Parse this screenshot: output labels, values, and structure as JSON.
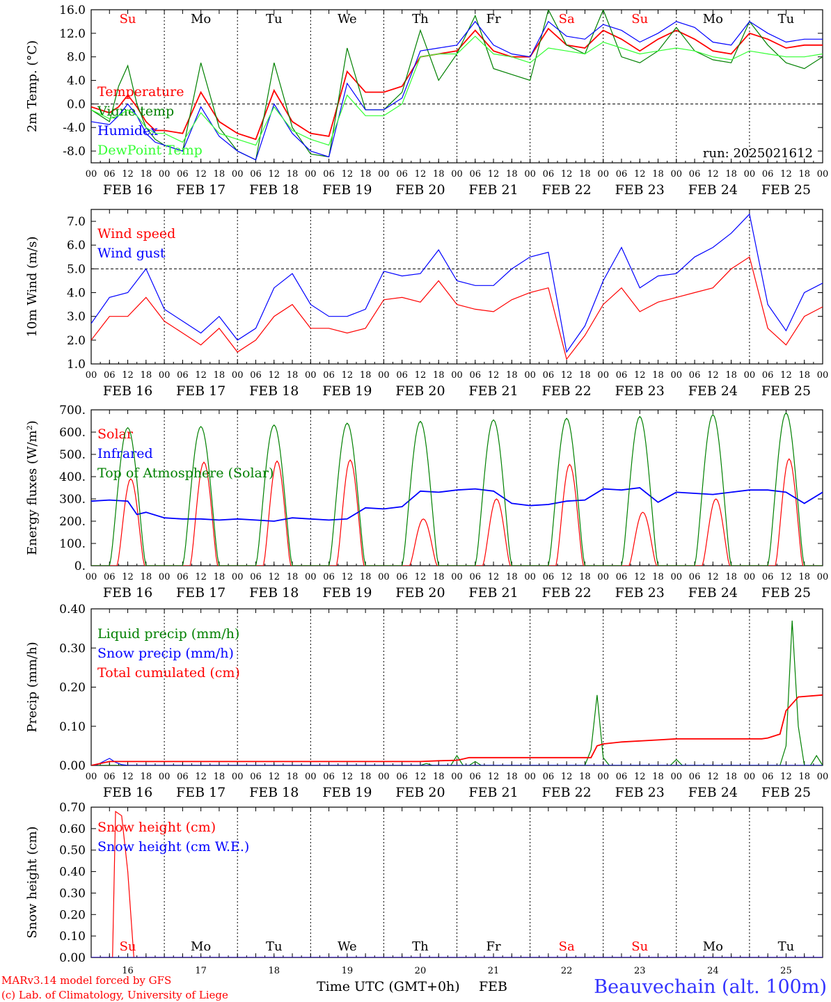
{
  "footer": {
    "model_line": "MARv3.14 model forced by GFS",
    "credit_line": "(c) Lab. of Climatology, University of Liege",
    "xlabel": "Time UTC (GMT+0h)",
    "month": "FEB",
    "station": "Beauvechain (alt. 100m)"
  },
  "time_axis": {
    "hour_ticks": [
      "00",
      "06",
      "12",
      "18"
    ],
    "dates": [
      "FEB 16",
      "FEB 17",
      "FEB 18",
      "FEB 19",
      "FEB 20",
      "FEB 21",
      "FEB 22",
      "FEB 23",
      "FEB 24",
      "FEB 25"
    ],
    "weekdays": [
      "Su",
      "Mo",
      "Tu",
      "We",
      "Th",
      "Fr",
      "Sa",
      "Su",
      "Mo",
      "Tu"
    ],
    "day_numbers": [
      "16",
      "17",
      "18",
      "19",
      "20",
      "21",
      "22",
      "23",
      "24",
      "25"
    ],
    "weekend_color": "#ff0000",
    "weekday_color": "#000000"
  },
  "chart_data": [
    {
      "type": "line",
      "ylabel": "2m Temp. (°C)",
      "ylim": [
        -10,
        16
      ],
      "yticks": [
        "16.0",
        "12.0",
        "8.0",
        "4.0",
        "0.0",
        "-4.0",
        "-8.0"
      ],
      "ytick_values": [
        16,
        12,
        8,
        4,
        0,
        -4,
        -8
      ],
      "ref_line": 0,
      "annotation": "run: 2025021612",
      "x_unit": "hours since FEB 16 00 UTC",
      "series": [
        {
          "name": "Temperature",
          "color": "#ff0000",
          "x": [
            0,
            6,
            9,
            12,
            15,
            18,
            21,
            24,
            30,
            36,
            42,
            48,
            54,
            60,
            66,
            72,
            78,
            84,
            90,
            96,
            102,
            108,
            114,
            120,
            126,
            132,
            138,
            144,
            150,
            156,
            162,
            168,
            174,
            180,
            186,
            192,
            198,
            204,
            210,
            216,
            222,
            228,
            234,
            240
          ],
          "values": [
            -0.5,
            -1.5,
            -0.5,
            1.5,
            -0.5,
            -3,
            -4.5,
            -4.5,
            -5,
            2,
            -3,
            -5,
            -6,
            2.3,
            -3,
            -5,
            -5.5,
            5.5,
            2,
            2,
            3,
            8,
            8.5,
            9,
            12.5,
            9,
            8,
            8,
            12.8,
            10,
            9.5,
            12.5,
            11,
            9,
            11,
            12.5,
            11,
            9,
            8.5,
            12,
            11,
            9.5,
            10,
            10
          ]
        },
        {
          "name": "Vigne temp",
          "color": "#008000",
          "x": [
            0,
            6,
            9,
            12,
            15,
            18,
            21,
            24,
            30,
            36,
            42,
            48,
            54,
            60,
            66,
            72,
            78,
            84,
            90,
            96,
            102,
            108,
            114,
            120,
            126,
            132,
            138,
            144,
            150,
            156,
            162,
            168,
            174,
            180,
            186,
            192,
            198,
            204,
            210,
            216,
            222,
            228,
            234,
            240
          ],
          "values": [
            -1,
            -3,
            3,
            6.5,
            0,
            -4,
            -6,
            -7,
            -8,
            7,
            -4,
            -8,
            -9.5,
            7,
            -4,
            -8.5,
            -9,
            9.5,
            -1,
            -1,
            2,
            12.5,
            4,
            8.5,
            15,
            6,
            5,
            4,
            16,
            10,
            8.5,
            16,
            8,
            7,
            9,
            13,
            9,
            7.5,
            7,
            14,
            10,
            7,
            6,
            8
          ]
        },
        {
          "name": "Humidex",
          "color": "#0000ff",
          "x": [
            0,
            6,
            9,
            12,
            15,
            18,
            21,
            24,
            30,
            36,
            42,
            48,
            54,
            60,
            66,
            72,
            78,
            84,
            90,
            96,
            102,
            108,
            114,
            120,
            126,
            132,
            138,
            144,
            150,
            156,
            162,
            168,
            174,
            180,
            186,
            192,
            198,
            204,
            210,
            216,
            222,
            228,
            234,
            240
          ],
          "values": [
            -3,
            -3.5,
            -2,
            0,
            -2,
            -5,
            -6.5,
            -7,
            -8,
            -0.5,
            -5.5,
            -8,
            -9.5,
            0,
            -5,
            -8,
            -9,
            3.5,
            -1,
            -1,
            1,
            9,
            9.5,
            10,
            14,
            10,
            8.5,
            8,
            14,
            11.5,
            11,
            13.5,
            12.5,
            10.5,
            12,
            14,
            13,
            10.5,
            10,
            14,
            12,
            10.5,
            11,
            11
          ]
        },
        {
          "name": "DewPoint Temp",
          "color": "#33ff33",
          "x": [
            0,
            6,
            9,
            12,
            15,
            18,
            21,
            24,
            30,
            36,
            42,
            48,
            54,
            60,
            66,
            72,
            78,
            84,
            90,
            96,
            102,
            108,
            114,
            120,
            126,
            132,
            138,
            144,
            150,
            156,
            162,
            168,
            174,
            180,
            186,
            192,
            198,
            204,
            210,
            216,
            222,
            228,
            234,
            240
          ],
          "values": [
            -1,
            -2.5,
            -2,
            -1,
            -2,
            -4,
            -5,
            -5,
            -6.5,
            -1.5,
            -5,
            -6,
            -7,
            -0.5,
            -4.5,
            -6,
            -7,
            1.5,
            -2,
            -2,
            0,
            8,
            8.5,
            8.5,
            11.5,
            8.5,
            8,
            7,
            9.5,
            9,
            8.5,
            10.5,
            9.5,
            8.5,
            9,
            9.5,
            9,
            8,
            7.5,
            9,
            8.5,
            8,
            8,
            8.5
          ]
        }
      ]
    },
    {
      "type": "line",
      "ylabel": "10m Wind (m/s)",
      "ylim": [
        1,
        7.5
      ],
      "yticks": [
        "7.0",
        "6.0",
        "5.0",
        "4.0",
        "3.0",
        "2.0",
        "1.0"
      ],
      "ytick_values": [
        7,
        6,
        5,
        4,
        3,
        2,
        1
      ],
      "ref_line": 5,
      "x_unit": "hours since FEB 16 00 UTC",
      "series": [
        {
          "name": "Wind speed",
          "color": "#ff0000",
          "x": [
            0,
            6,
            12,
            18,
            24,
            30,
            36,
            42,
            48,
            54,
            60,
            66,
            72,
            78,
            84,
            90,
            96,
            102,
            108,
            114,
            120,
            126,
            132,
            138,
            144,
            150,
            156,
            162,
            168,
            174,
            180,
            186,
            192,
            198,
            204,
            210,
            216,
            222,
            228,
            234,
            240
          ],
          "values": [
            2,
            3,
            3,
            3.8,
            2.8,
            2.3,
            1.8,
            2.5,
            1.5,
            2,
            3,
            3.5,
            2.5,
            2.5,
            2.3,
            2.5,
            3.7,
            3.8,
            3.6,
            4.5,
            3.5,
            3.3,
            3.2,
            3.7,
            4,
            4.2,
            1.2,
            2.2,
            3.5,
            4.2,
            3.2,
            3.6,
            3.8,
            4,
            4.2,
            5,
            5.5,
            2.5,
            1.8,
            3,
            3.4
          ]
        },
        {
          "name": "Wind gust",
          "color": "#0000ff",
          "x": [
            0,
            6,
            12,
            18,
            24,
            30,
            36,
            42,
            48,
            54,
            60,
            66,
            72,
            78,
            84,
            90,
            96,
            102,
            108,
            114,
            120,
            126,
            132,
            138,
            144,
            150,
            156,
            162,
            168,
            174,
            180,
            186,
            192,
            198,
            204,
            210,
            216,
            222,
            228,
            234,
            240
          ],
          "values": [
            2.7,
            3.8,
            4,
            5,
            3.3,
            2.8,
            2.3,
            3,
            2,
            2.5,
            4.2,
            4.8,
            3.5,
            3,
            3,
            3.3,
            4.9,
            4.7,
            4.8,
            5.8,
            4.5,
            4.3,
            4.3,
            5,
            5.5,
            5.7,
            1.5,
            2.6,
            4.5,
            5.9,
            4.2,
            4.7,
            4.8,
            5.5,
            5.9,
            6.5,
            7.3,
            3.5,
            2.4,
            4,
            4.4
          ]
        }
      ]
    },
    {
      "type": "line",
      "ylabel": "Energy fluxes (W/m²)",
      "ylim": [
        0,
        700
      ],
      "yticks": [
        "700.",
        "600.",
        "500.",
        "400.",
        "300.",
        "200.",
        "100.",
        "0."
      ],
      "ytick_values": [
        700,
        600,
        500,
        400,
        300,
        200,
        100,
        0
      ],
      "x_unit": "hours since FEB 16 00 UTC",
      "series": [
        {
          "name": "Solar",
          "color": "#ff0000",
          "peak_hours": [
            13,
            37,
            61,
            85,
            109,
            133,
            157,
            181,
            205,
            229
          ],
          "peak_values": [
            390,
            465,
            470,
            475,
            210,
            300,
            455,
            240,
            300,
            480
          ]
        },
        {
          "name": "Infrared",
          "color": "#0000ff",
          "x": [
            0,
            6,
            12,
            15,
            18,
            24,
            30,
            36,
            42,
            48,
            54,
            60,
            66,
            72,
            78,
            84,
            90,
            96,
            102,
            108,
            114,
            120,
            126,
            132,
            138,
            144,
            150,
            156,
            162,
            168,
            174,
            180,
            186,
            192,
            198,
            204,
            210,
            216,
            222,
            228,
            234,
            240
          ],
          "values": [
            290,
            295,
            290,
            230,
            240,
            215,
            210,
            210,
            205,
            210,
            205,
            200,
            215,
            210,
            205,
            210,
            260,
            255,
            265,
            335,
            330,
            340,
            345,
            335,
            280,
            270,
            275,
            290,
            295,
            345,
            340,
            350,
            285,
            330,
            325,
            320,
            330,
            340,
            340,
            330,
            280,
            330
          ]
        },
        {
          "name": "Top of Atmosphere (Solar)",
          "color": "#008000",
          "peak_hours": [
            12,
            36,
            60,
            84,
            108,
            132,
            156,
            180,
            204,
            228
          ],
          "peak_values": [
            620,
            625,
            632,
            640,
            648,
            655,
            662,
            670,
            678,
            686
          ]
        }
      ]
    },
    {
      "type": "line",
      "ylabel": "Precip (mm/h)",
      "ylim": [
        0,
        0.4
      ],
      "yticks": [
        "0.40",
        "0.30",
        "0.20",
        "0.10",
        "0.00"
      ],
      "ytick_values": [
        0.4,
        0.3,
        0.2,
        0.1,
        0
      ],
      "x_unit": "hours since FEB 16 00 UTC",
      "series": [
        {
          "name": "Liquid precip (mm/h)",
          "color": "#008000",
          "x": [
            0,
            108,
            110,
            112,
            114,
            118,
            120,
            122,
            124,
            126,
            128,
            162,
            164,
            166,
            168,
            170,
            172,
            190,
            192,
            194,
            226,
            228,
            230,
            232,
            234,
            236,
            238,
            240
          ],
          "values": [
            0,
            0,
            0.005,
            0,
            0,
            0,
            0.025,
            0,
            0,
            0.01,
            0,
            0,
            0.04,
            0.18,
            0.02,
            0,
            0,
            0,
            0.015,
            0,
            0,
            0.05,
            0.37,
            0.1,
            0,
            0,
            0.025,
            0
          ]
        },
        {
          "name": "Snow precip (mm/h)",
          "color": "#0000ff",
          "x": [
            0,
            2,
            4,
            6,
            8,
            10,
            12,
            240
          ],
          "values": [
            0,
            0.002,
            0.01,
            0.018,
            0.008,
            0.002,
            0,
            0
          ]
        },
        {
          "name": "Total cumulated (cm)",
          "color": "#ff0000",
          "x": [
            0,
            6,
            10,
            108,
            114,
            120,
            124,
            164,
            166,
            168,
            174,
            186,
            192,
            220,
            222,
            226,
            228,
            232,
            240
          ],
          "values": [
            0,
            0.01,
            0.01,
            0.01,
            0.012,
            0.013,
            0.02,
            0.02,
            0.05,
            0.055,
            0.06,
            0.065,
            0.068,
            0.068,
            0.07,
            0.08,
            0.14,
            0.175,
            0.18
          ]
        }
      ]
    },
    {
      "type": "line",
      "ylabel": "Snow height (cm)",
      "ylim": [
        0,
        0.7
      ],
      "yticks": [
        "0.70",
        "0.60",
        "0.50",
        "0.40",
        "0.30",
        "0.20",
        "0.10",
        "0.00"
      ],
      "ytick_values": [
        0.7,
        0.6,
        0.5,
        0.4,
        0.3,
        0.2,
        0.1,
        0
      ],
      "x_unit": "hours since FEB 16 00 UTC",
      "series": [
        {
          "name": "Snow height (cm)",
          "color": "#ff0000",
          "x": [
            0,
            7,
            8,
            10,
            12,
            14,
            240
          ],
          "values": [
            0,
            0,
            0.68,
            0.66,
            0.4,
            0,
            0
          ]
        },
        {
          "name": "Snow height (cm W.E.)",
          "color": "#0000ff",
          "x": [
            0,
            240
          ],
          "values": [
            0,
            0
          ]
        }
      ]
    }
  ]
}
